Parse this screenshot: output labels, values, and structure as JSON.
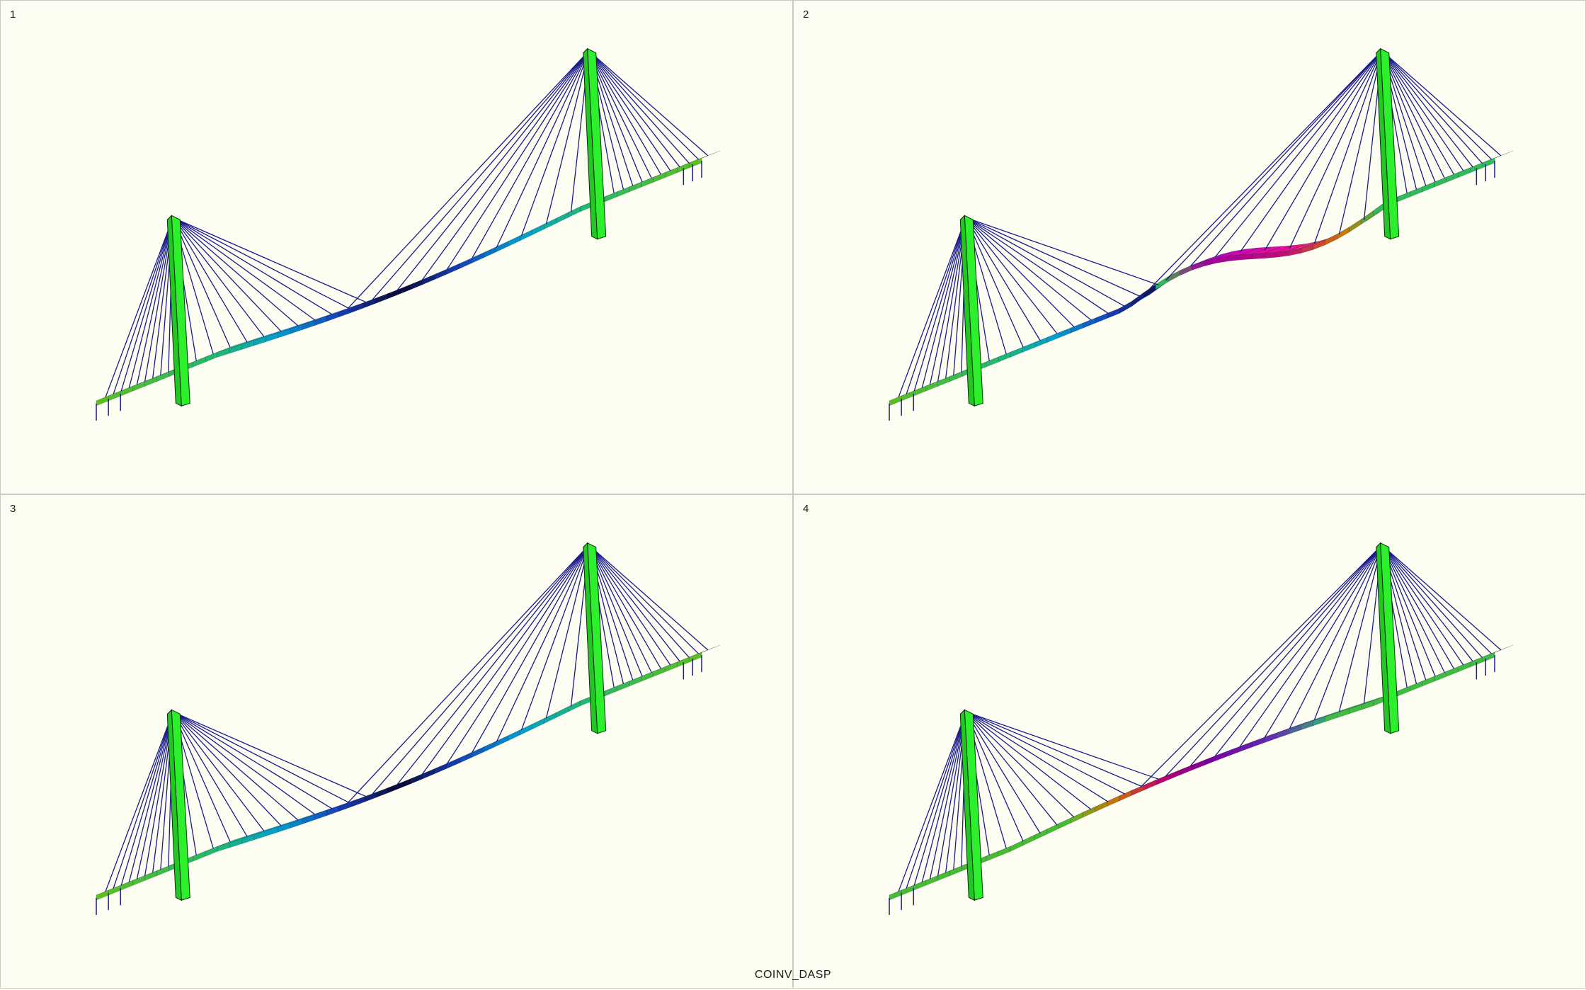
{
  "viewports": [
    {
      "label": "1",
      "mode": "down"
    },
    {
      "label": "2",
      "mode": "antisym"
    },
    {
      "label": "3",
      "mode": "down"
    },
    {
      "label": "4",
      "mode": "up"
    }
  ],
  "caption": "COINV_DASP",
  "colors": {
    "background": "#fdfdf2",
    "cable": "#1a1a8c",
    "pylon": "#2df02d",
    "border": "#c9c9c9"
  }
}
